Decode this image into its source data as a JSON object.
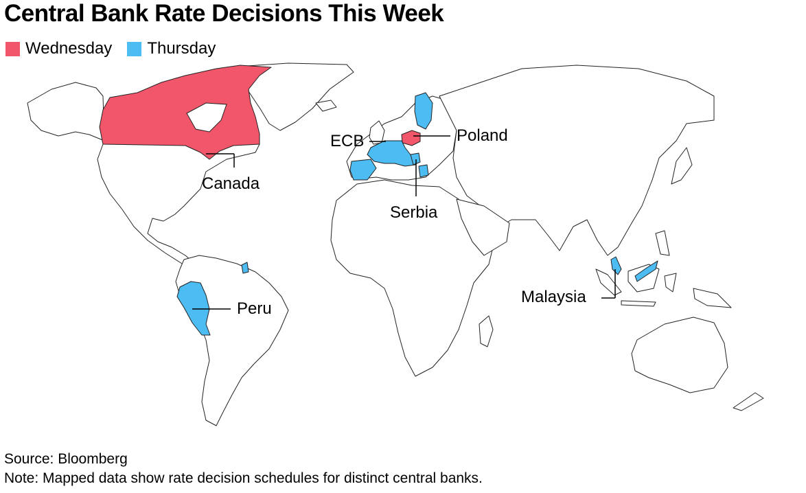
{
  "title": "Central Bank Rate Decisions This Week",
  "legend": {
    "items": [
      {
        "label": "Wednesday",
        "color": "#f2566b"
      },
      {
        "label": "Thursday",
        "color": "#4cbcf2"
      }
    ]
  },
  "map": {
    "highlighted": [
      {
        "name": "Canada",
        "group": "Wednesday"
      },
      {
        "name": "Poland",
        "group": "Wednesday"
      },
      {
        "name": "ECB",
        "group": "Thursday"
      },
      {
        "name": "Serbia",
        "group": "Thursday"
      },
      {
        "name": "Peru",
        "group": "Thursday"
      },
      {
        "name": "Malaysia",
        "group": "Thursday"
      }
    ],
    "labels": {
      "canada": "Canada",
      "ecb": "ECB",
      "poland": "Poland",
      "serbia": "Serbia",
      "peru": "Peru",
      "malaysia": "Malaysia"
    }
  },
  "footer": {
    "source": "Source: Bloomberg",
    "note": "Note: Mapped data show rate decision schedules for distinct central banks."
  }
}
